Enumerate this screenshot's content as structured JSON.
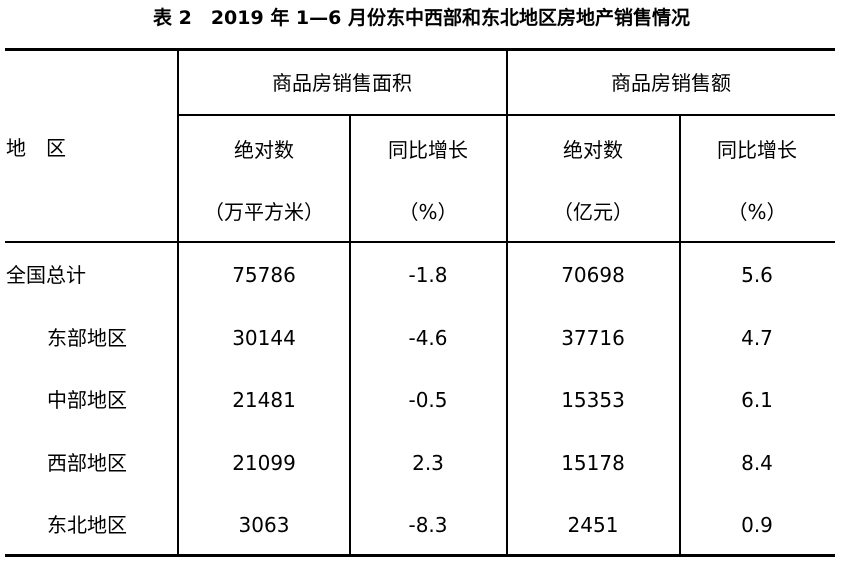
{
  "header": {
    "title": "表 2　2019 年 1—6 月份东中西部和东北地区房地产销售情况"
  },
  "table": {
    "region_header": "地　区",
    "groups": [
      "商品房销售面积",
      "商品房销售额"
    ],
    "columns": [
      {
        "name": "绝对数",
        "unit": "（万平方米）"
      },
      {
        "name": "同比增长",
        "unit": "（%）"
      },
      {
        "name": "绝对数",
        "unit": "（亿元）"
      },
      {
        "name": "同比增长",
        "unit": "（%）"
      }
    ],
    "rows": [
      [
        "全国总计",
        "75786",
        "-1.8",
        "70698",
        "5.6"
      ],
      [
        "东部地区",
        "30144",
        "-4.6",
        "37716",
        "4.7"
      ],
      [
        "中部地区",
        "21481",
        "-0.5",
        "15353",
        "6.1"
      ],
      [
        "西部地区",
        "21099",
        "2.3",
        "15178",
        "8.4"
      ],
      [
        "东北地区",
        "3063",
        "-8.3",
        "2451",
        "0.9"
      ]
    ]
  }
}
